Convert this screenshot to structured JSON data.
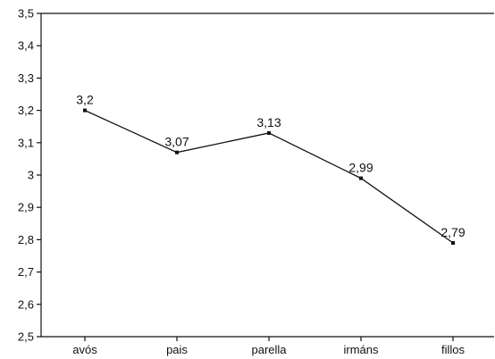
{
  "chart_data": {
    "type": "line",
    "categories": [
      "avós",
      "pais",
      "parella",
      "irmáns",
      "fillos"
    ],
    "values": [
      3.2,
      3.07,
      3.13,
      2.99,
      2.79
    ],
    "value_labels": [
      "3,2",
      "3,07",
      "3,13",
      "2,99",
      "2,79"
    ],
    "ylim": [
      2.5,
      3.5
    ],
    "ytick_labels": [
      "2,5",
      "2,6",
      "2,7",
      "2,8",
      "2,9",
      "3",
      "3,1",
      "3,2",
      "3,3",
      "3,4",
      "3,5"
    ],
    "grid": false,
    "title": "",
    "xlabel": "",
    "ylabel": "",
    "colors": {
      "line": "#111111",
      "axis": "#111111",
      "marker": "#111111"
    }
  }
}
